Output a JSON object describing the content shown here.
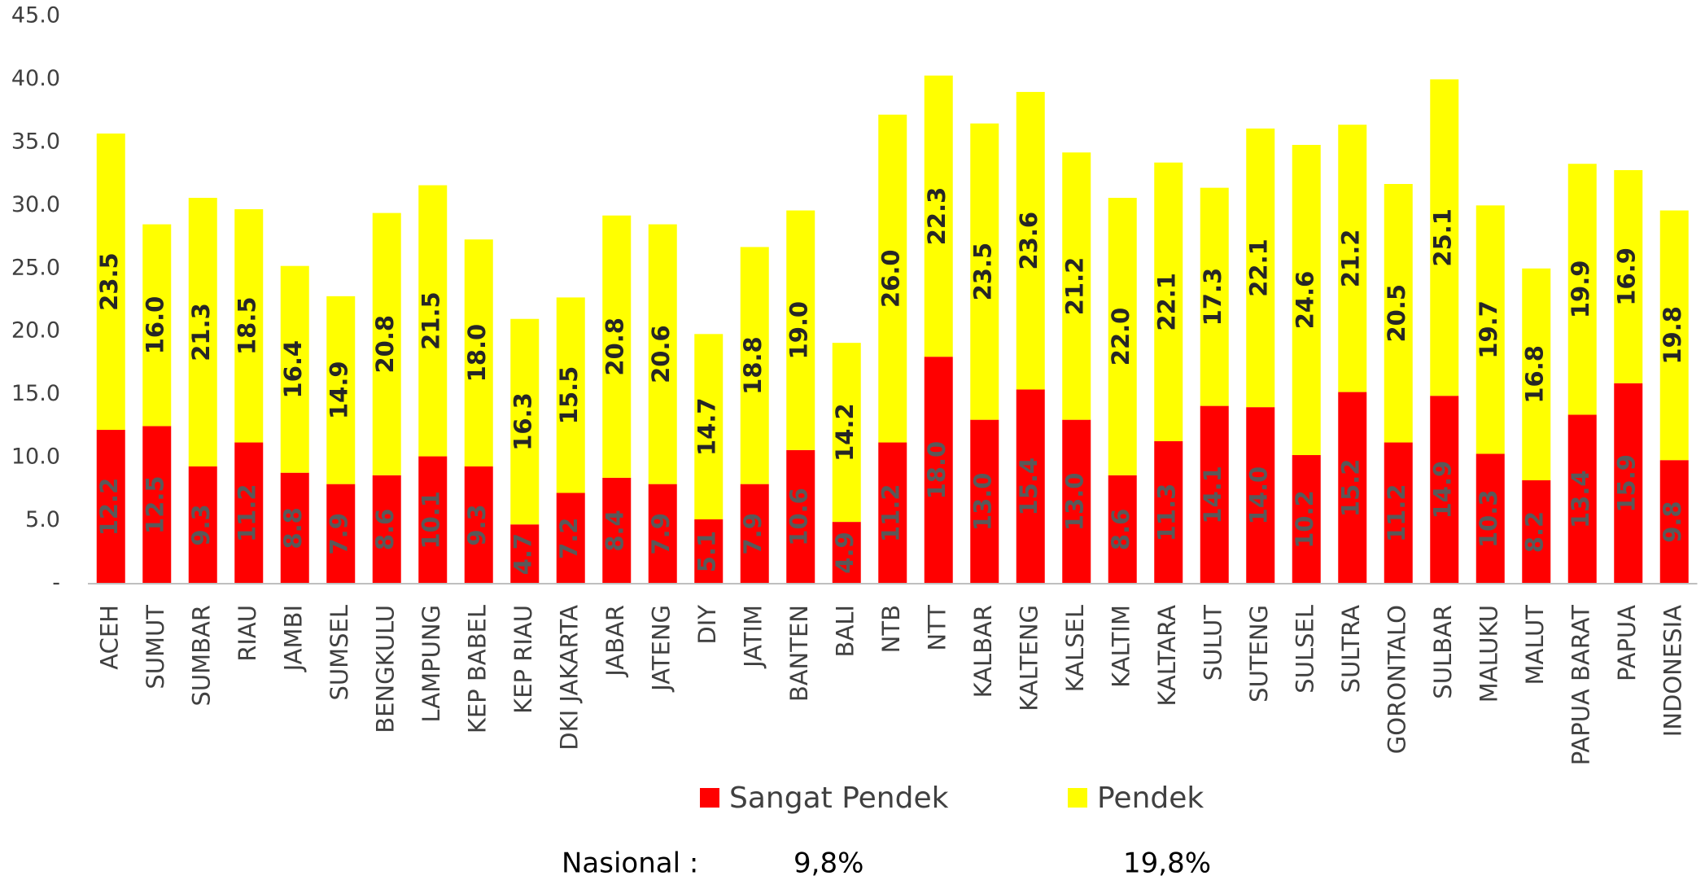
{
  "chart_data": {
    "type": "stacked_bar",
    "categories": [
      "ACEH",
      "SUMUT",
      "SUMBAR",
      "RIAU",
      "JAMBI",
      "SUMSEL",
      "BENGKULU",
      "LAMPUNG",
      "KEP BABEL",
      "KEP RIAU",
      "DKI JAKARTA",
      "JABAR",
      "JATENG",
      "DIY",
      "JATIM",
      "BANTEN",
      "BALI",
      "NTB",
      "NTT",
      "KALBAR",
      "KALTENG",
      "KALSEL",
      "KALTIM",
      "KALTARA",
      "SULUT",
      "SUTENG",
      "SULSEL",
      "SULTRA",
      "GORONTALO",
      "SULBAR",
      "MALUKU",
      "MALUT",
      "PAPUA BARAT",
      "PAPUA",
      "INDONESIA"
    ],
    "series": [
      {
        "name": "Sangat Pendek",
        "color": "#ff0000",
        "label_color": "#595959",
        "values": [
          12.2,
          12.5,
          9.3,
          11.2,
          8.8,
          7.9,
          8.6,
          10.1,
          9.3,
          4.7,
          7.2,
          8.4,
          7.9,
          5.1,
          7.9,
          10.6,
          4.9,
          11.2,
          18.0,
          13.0,
          15.4,
          13.0,
          8.6,
          11.3,
          14.1,
          14.0,
          10.2,
          15.2,
          11.2,
          14.9,
          10.3,
          8.2,
          13.4,
          15.9,
          9.8
        ],
        "value_labels": [
          "12.2",
          "12.5",
          "9.3",
          "11.2",
          "8.8",
          "7.9",
          "8.6",
          "10.1",
          "9.3",
          "4.7",
          "7.2",
          "8.4",
          "7.9",
          "5.1",
          "7.9",
          "10.6",
          "4.9",
          "11.2",
          "18.0",
          "13.0",
          "15.4",
          "13.0",
          "8.6",
          "11.3",
          "14.1",
          "14.0",
          "10.2",
          "15.2",
          "11.2",
          "14.9",
          "10.3",
          "8.2",
          "13.4",
          "15.9",
          "9.8"
        ]
      },
      {
        "name": "Pendek",
        "color": "#ffff00",
        "label_color": "#262626",
        "values": [
          23.5,
          16.0,
          21.3,
          18.5,
          16.4,
          14.9,
          20.8,
          21.5,
          18.0,
          16.3,
          15.5,
          20.8,
          20.6,
          14.7,
          18.8,
          19.0,
          14.2,
          26.0,
          22.3,
          23.5,
          23.6,
          21.2,
          22.0,
          22.1,
          17.3,
          22.1,
          24.6,
          21.2,
          20.5,
          25.1,
          19.7,
          16.8,
          19.9,
          16.9,
          19.8
        ],
        "value_labels": [
          "23.5",
          "16.0",
          "21.3",
          "18.5",
          "16.4",
          "14.9",
          "20.8",
          "21.5",
          "18.0",
          "16.3",
          "15.5",
          "20.8",
          "20.6",
          "14.7",
          "18.8",
          "19.0",
          "14.2",
          "26.0",
          "22.3",
          "23.5",
          "23.6",
          "21.2",
          "22.0",
          "22.1",
          "17.3",
          "22.1",
          "24.6",
          "21.2",
          "20.5",
          "25.1",
          "19.7",
          "16.8",
          "19.9",
          "16.9",
          "19.8"
        ]
      }
    ],
    "ylim": [
      0,
      45
    ],
    "yticks": [
      {
        "value": 0,
        "label": "-"
      },
      {
        "value": 5,
        "label": "5.0"
      },
      {
        "value": 10,
        "label": "10.0"
      },
      {
        "value": 15,
        "label": "15.0"
      },
      {
        "value": 20,
        "label": "20.0"
      },
      {
        "value": 25,
        "label": "25.0"
      },
      {
        "value": 30,
        "label": "30.0"
      },
      {
        "value": 35,
        "label": "35.0"
      },
      {
        "value": 40,
        "label": "40.0"
      },
      {
        "value": 45,
        "label": "45.0"
      }
    ],
    "grid": false,
    "legend": "bottom",
    "annotations": [
      "Nasional :",
      "9,8%",
      "19,8%"
    ]
  }
}
